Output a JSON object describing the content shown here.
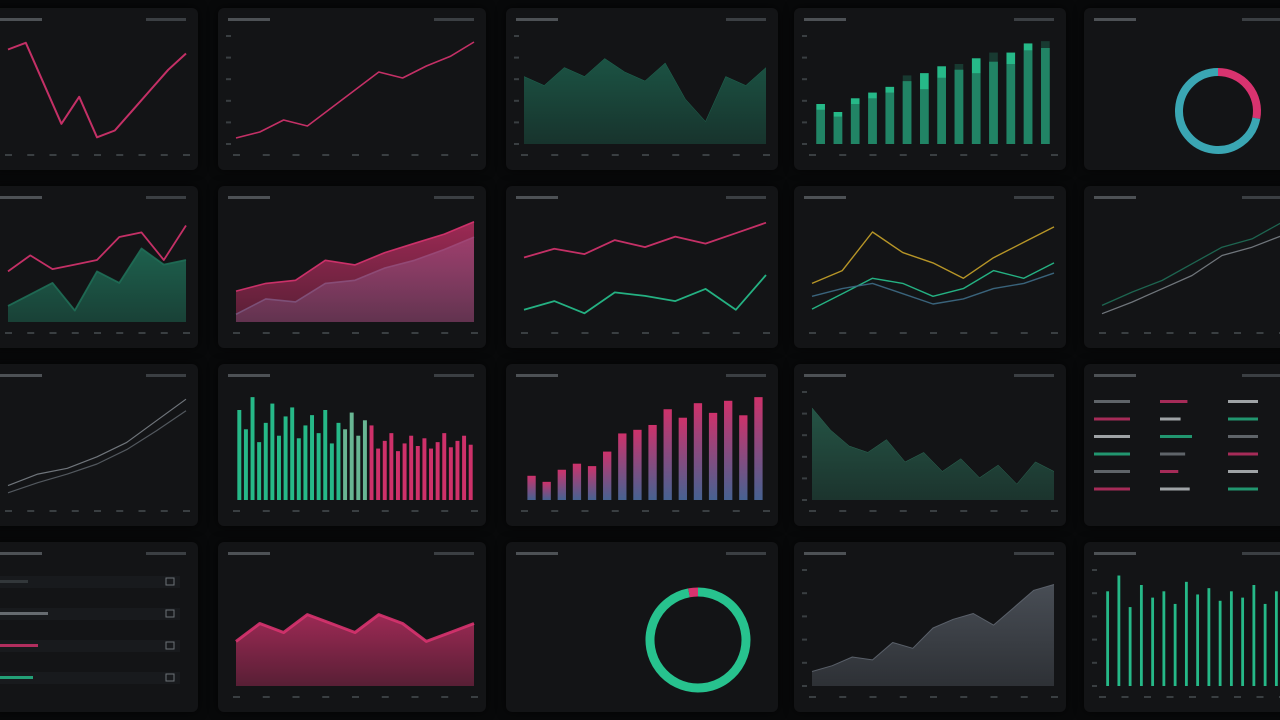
{
  "panel_titles": {
    "p01": "",
    "p02": "",
    "p03": "",
    "p04": "",
    "p05": "",
    "p06": "",
    "p07": "",
    "p08": "",
    "p09": "",
    "p10": "",
    "p11": "",
    "p12": "",
    "p13": "",
    "p14": "",
    "p15": "",
    "p16": "",
    "p17": "",
    "p18": "",
    "p19": "",
    "p20": ""
  },
  "colors": {
    "pink": "#d8336f",
    "teal": "#27c28e",
    "teal_dark": "#1f6e57",
    "blue_fill": "#3e6b86",
    "yellow": "#c9a329",
    "gray_line": "#7a7f86",
    "donut_gradient_start": "#d8336f",
    "donut_gradient_end": "#3aa6b3"
  },
  "chart_data": [
    {
      "id": "p01",
      "type": "line",
      "series": [
        {
          "values": [
            85,
            90,
            60,
            30,
            50,
            20,
            25,
            40,
            55,
            70,
            82
          ]
        }
      ]
    },
    {
      "id": "p02",
      "type": "line",
      "series": [
        {
          "values": [
            10,
            15,
            25,
            20,
            35,
            50,
            65,
            60,
            70,
            78,
            90
          ]
        }
      ]
    },
    {
      "id": "p03",
      "type": "area",
      "series": [
        {
          "values": [
            70,
            68,
            72,
            70,
            74,
            71,
            69,
            73,
            65,
            60,
            70,
            68,
            72
          ]
        }
      ]
    },
    {
      "id": "p04",
      "type": "bar",
      "series": [
        {
          "values": [
            35,
            28,
            40,
            45,
            50,
            55,
            62,
            68,
            65,
            75,
            72,
            80,
            88,
            84
          ]
        },
        {
          "values": [
            30,
            24,
            35,
            40,
            45,
            60,
            48,
            58,
            70,
            62,
            80,
            70,
            82,
            90
          ]
        }
      ]
    },
    {
      "id": "p05",
      "type": "pie",
      "series": [
        {
          "values": [
            28,
            72
          ]
        }
      ]
    },
    {
      "id": "p06",
      "type": "area",
      "series": [
        {
          "values": [
            40,
            45,
            50,
            38,
            55,
            50,
            65,
            58,
            60
          ]
        },
        {
          "values": [
            55,
            62,
            56,
            58,
            60,
            70,
            72,
            60,
            75
          ]
        }
      ]
    },
    {
      "id": "p07",
      "type": "area",
      "series": [
        {
          "values": [
            20,
            30,
            28,
            40,
            42,
            50,
            55,
            62,
            70
          ]
        },
        {
          "values": [
            35,
            40,
            42,
            55,
            52,
            60,
            66,
            72,
            80
          ]
        }
      ]
    },
    {
      "id": "p08",
      "type": "line",
      "series": [
        {
          "values": [
            60,
            65,
            62,
            70,
            66,
            72,
            68,
            74,
            80
          ]
        },
        {
          "values": [
            30,
            35,
            28,
            40,
            38,
            35,
            42,
            30,
            50
          ]
        }
      ]
    },
    {
      "id": "p09",
      "type": "line",
      "series": [
        {
          "values": [
            40,
            45,
            60,
            52,
            48,
            42,
            50,
            56,
            62
          ]
        },
        {
          "values": [
            30,
            36,
            42,
            40,
            35,
            38,
            45,
            42,
            48
          ]
        },
        {
          "values": [
            35,
            38,
            40,
            36,
            32,
            34,
            38,
            40,
            44
          ]
        }
      ]
    },
    {
      "id": "p10",
      "type": "line",
      "series": [
        {
          "values": [
            20,
            28,
            35,
            45,
            55,
            60,
            70
          ]
        },
        {
          "values": [
            15,
            22,
            30,
            38,
            50,
            55,
            62
          ]
        }
      ]
    },
    {
      "id": "p11",
      "type": "line",
      "series": [
        {
          "values": [
            10,
            18,
            22,
            30,
            40,
            55,
            70
          ]
        },
        {
          "values": [
            5,
            12,
            18,
            25,
            35,
            48,
            62
          ]
        }
      ]
    },
    {
      "id": "p12",
      "type": "bar",
      "series": [
        {
          "values": [
            70,
            55,
            80,
            45,
            60,
            75,
            50,
            65,
            72,
            48,
            58,
            66,
            52,
            70,
            44,
            60,
            55,
            68,
            50,
            62,
            58,
            40,
            46,
            52,
            38,
            44,
            50,
            42,
            48,
            40,
            45,
            52,
            41,
            46,
            50,
            43
          ]
        }
      ]
    },
    {
      "id": "p13",
      "type": "bar",
      "series": [
        {
          "values": [
            20,
            15,
            25,
            30,
            28,
            40,
            55,
            58,
            62,
            75,
            68,
            80,
            72,
            82,
            70,
            85
          ]
        }
      ]
    },
    {
      "id": "p14",
      "type": "area",
      "series": [
        {
          "values": [
            72,
            65,
            60,
            58,
            62,
            55,
            58,
            52,
            56,
            50,
            54,
            48,
            55,
            52
          ]
        }
      ]
    },
    {
      "id": "p15",
      "type": "table",
      "series": [
        {
          "values": [
            60,
            45,
            70,
            55,
            40,
            65
          ]
        }
      ]
    },
    {
      "id": "p16",
      "type": "table",
      "series": [
        {
          "values": [
            30,
            50,
            40,
            35
          ]
        }
      ]
    },
    {
      "id": "p17",
      "type": "area",
      "series": [
        {
          "values": [
            80,
            82,
            81,
            83,
            82,
            81,
            83,
            82,
            80,
            81,
            82
          ]
        }
      ]
    },
    {
      "id": "p18",
      "type": "pie",
      "series": [
        {
          "values": [
            97,
            3
          ]
        }
      ]
    },
    {
      "id": "p19",
      "type": "area",
      "series": [
        {
          "values": [
            40,
            42,
            45,
            44,
            50,
            48,
            55,
            58,
            60,
            56,
            62,
            68,
            70
          ]
        }
      ]
    },
    {
      "id": "p20",
      "type": "bar",
      "series": [
        {
          "values": [
            30,
            35,
            25,
            32,
            28,
            30,
            26,
            33,
            29,
            31,
            27,
            30,
            28,
            32,
            26,
            30
          ]
        }
      ]
    }
  ]
}
